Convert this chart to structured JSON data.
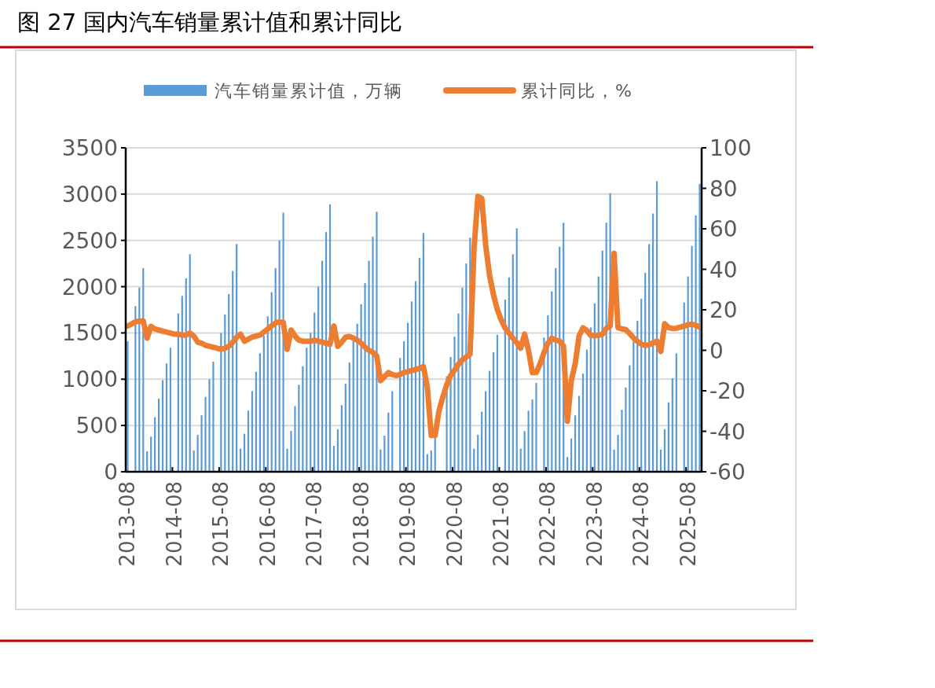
{
  "chart_data": {
    "type": "bar",
    "title": "图 27 国内汽车销量累计值和累计同比",
    "categories": [
      "2013-08",
      null,
      null,
      null,
      null,
      null,
      null,
      null,
      null,
      null,
      null,
      null,
      "2014-08",
      null,
      null,
      null,
      null,
      null,
      null,
      null,
      null,
      null,
      null,
      null,
      "2015-08",
      null,
      null,
      null,
      null,
      null,
      null,
      null,
      null,
      null,
      null,
      null,
      "2016-08",
      null,
      null,
      null,
      null,
      null,
      null,
      null,
      null,
      null,
      null,
      null,
      "2017-08",
      null,
      null,
      null,
      null,
      null,
      null,
      null,
      null,
      null,
      null,
      null,
      "2018-08",
      null,
      null,
      null,
      null,
      null,
      null,
      null,
      null,
      null,
      null,
      null,
      "2019-08",
      null,
      null,
      null,
      null,
      null,
      null,
      null,
      null,
      null,
      null,
      null,
      "2020-08",
      null,
      null,
      null,
      null,
      null,
      null,
      null,
      null,
      null,
      null,
      null,
      "2021-08",
      null,
      null,
      null,
      null,
      null,
      null,
      null,
      null,
      null,
      null,
      null,
      "2022-08",
      null,
      null,
      null,
      null,
      null,
      null,
      null,
      null,
      null,
      null,
      null,
      "2023-08",
      null,
      null,
      null,
      null,
      null,
      null,
      null,
      null,
      null,
      null,
      null,
      "2024-08",
      null,
      null,
      null,
      null,
      null,
      null,
      null,
      null,
      null,
      null,
      null,
      "2025-08",
      null,
      null,
      null
    ],
    "series": [
      {
        "name": "汽车销量累计值，万辆",
        "color": "#5b9bd5",
        "values": [
          1410,
          null,
          1790,
          1990,
          2200,
          220,
          380,
          590,
          790,
          990,
          1170,
          1340,
          null,
          1710,
          1900,
          2090,
          2350,
          230,
          400,
          610,
          810,
          1000,
          1190,
          null,
          1500,
          1700,
          1920,
          2170,
          2460,
          250,
          410,
          660,
          870,
          1080,
          1280,
          1470,
          1680,
          1940,
          2200,
          2500,
          2800,
          250,
          440,
          710,
          940,
          1140,
          1340,
          1500,
          1720,
          2000,
          2280,
          2590,
          2890,
          280,
          460,
          720,
          950,
          1180,
          1410,
          1600,
          1810,
          2040,
          2280,
          2540,
          2810,
          240,
          390,
          640,
          870,
          null,
          1230,
          1410,
          1610,
          1840,
          2060,
          2310,
          2580,
          190,
          230,
          370,
          null,
          null,
          1030,
          1240,
          1460,
          1710,
          1990,
          2250,
          2530,
          250,
          400,
          650,
          870,
          1090,
          1290,
          1480,
          null,
          1860,
          2100,
          2350,
          2630,
          250,
          440,
          660,
          780,
          960,
          null,
          1450,
          1690,
          1950,
          2200,
          2430,
          2690,
          160,
          360,
          610,
          820,
          1060,
          1320,
          1560,
          1820,
          2110,
          2390,
          2690,
          3010,
          240,
          400,
          670,
          910,
          1150,
          1410,
          1630,
          1870,
          2150,
          2460,
          2790,
          3140,
          240,
          460,
          750,
          1010,
          1280,
          null,
          1830,
          2110,
          2440,
          2770,
          3110
        ]
      },
      {
        "name": "累计同比，%",
        "type": "line",
        "axis": "y2",
        "color": "#ed7d31",
        "values": [
          12,
          13,
          14,
          14.5,
          14.5,
          6,
          11.8,
          10.5,
          10,
          9.5,
          9,
          8.5,
          8,
          8,
          7.5,
          7.5,
          8.5,
          7,
          4,
          3.5,
          2.5,
          2,
          1.5,
          1,
          0.5,
          1,
          2,
          4,
          6.5,
          8,
          4.5,
          5.5,
          6.5,
          7,
          7.5,
          9,
          10.5,
          12,
          13.5,
          14,
          13.8,
          0.5,
          10,
          7,
          5,
          4.5,
          4.5,
          4.5,
          5,
          4.5,
          4,
          3.5,
          3,
          12,
          2,
          4,
          6.5,
          6.8,
          6,
          5,
          3.5,
          1.5,
          0,
          -1,
          -2.8,
          -15,
          -13,
          -11,
          -12,
          -12.5,
          -12,
          -11,
          -10.5,
          -10,
          -9.5,
          -9,
          -8,
          -18,
          -42,
          -42,
          -30,
          -23,
          -17,
          -12.5,
          -9.8,
          -6.9,
          -4.7,
          -3.3,
          -1.9,
          50,
          76,
          75,
          52,
          37,
          27.5,
          20,
          15,
          11,
          8.5,
          6,
          3.8,
          1,
          8,
          0,
          -11,
          -11,
          -6.6,
          -1,
          3.5,
          6,
          5,
          4.5,
          2.1,
          -35,
          -15,
          -6.7,
          7.1,
          11.1,
          9.8,
          7.3,
          7.4,
          7.3,
          8,
          10.8,
          12,
          47.9,
          11.1,
          10.6,
          10.2,
          8.3,
          6.1,
          4.4,
          3,
          2.4,
          2.7,
          3.7,
          4.5,
          -0.6,
          13.1,
          11.2,
          10.8,
          10.9,
          11.4,
          12,
          12.6,
          12.9,
          12.4,
          11.4
        ]
      }
    ],
    "ylim": [
      0,
      3500
    ],
    "yticks": [
      0,
      500,
      1000,
      1500,
      2000,
      2500,
      3000,
      3500
    ],
    "y2lim": [
      -60,
      100
    ],
    "y2ticks": [
      -60,
      -40,
      -20,
      0,
      20,
      40,
      60,
      80,
      100
    ],
    "grid": "y",
    "legend": "top"
  }
}
